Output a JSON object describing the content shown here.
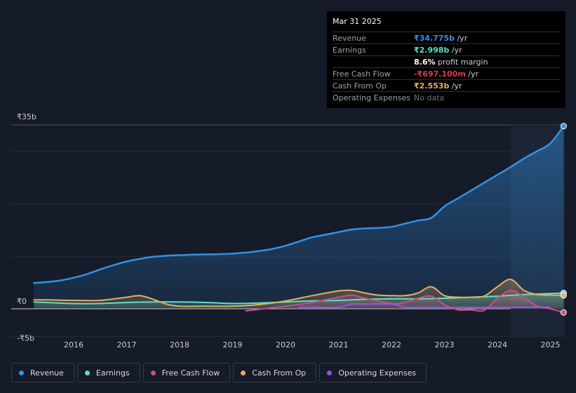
{
  "chart_data": {
    "type": "area",
    "currency_unit": "₹",
    "ylim": [
      -5,
      35
    ],
    "y_tick_labels": [
      {
        "value": 35,
        "label": "₹35b"
      },
      {
        "value": 0,
        "label": "₹0"
      },
      {
        "value": -5,
        "label": "-₹5b"
      }
    ],
    "x_tick_labels": [
      "2016",
      "2017",
      "2018",
      "2019",
      "2020",
      "2021",
      "2022",
      "2023",
      "2024",
      "2025"
    ],
    "x_tick_values": [
      2016,
      2017,
      2018,
      2019,
      2020,
      2021,
      2022,
      2023,
      2024,
      2025
    ],
    "forecast_shade_start": 2024.25,
    "series": [
      {
        "name": "Revenue",
        "color": "#3391e6",
        "fill": true,
        "x": [
          2015.25,
          2015.5,
          2015.75,
          2016.0,
          2016.25,
          2016.5,
          2016.75,
          2017.0,
          2017.25,
          2017.5,
          2017.75,
          2018.0,
          2018.25,
          2018.5,
          2018.75,
          2019.0,
          2019.25,
          2019.5,
          2019.75,
          2020.0,
          2020.25,
          2020.5,
          2020.75,
          2021.0,
          2021.25,
          2021.5,
          2021.75,
          2022.0,
          2022.25,
          2022.5,
          2022.75,
          2023.0,
          2023.25,
          2023.5,
          2023.75,
          2024.0,
          2024.25,
          2024.5,
          2024.75,
          2025.0,
          2025.25
        ],
        "values": [
          4.9,
          5.1,
          5.4,
          5.9,
          6.6,
          7.5,
          8.3,
          9.0,
          9.5,
          9.9,
          10.1,
          10.2,
          10.3,
          10.35,
          10.4,
          10.5,
          10.7,
          11.0,
          11.4,
          12.0,
          12.8,
          13.6,
          14.1,
          14.6,
          15.1,
          15.3,
          15.4,
          15.6,
          16.2,
          16.8,
          17.3,
          19.5,
          21.0,
          22.5,
          24.0,
          25.5,
          27.0,
          28.6,
          30.0,
          31.5,
          34.775
        ]
      },
      {
        "name": "Earnings",
        "color": "#5ce0c6",
        "fill": true,
        "x": [
          2015.25,
          2015.5,
          2016.0,
          2016.5,
          2017.0,
          2017.5,
          2018.0,
          2018.5,
          2019.0,
          2019.5,
          2020.0,
          2020.5,
          2021.0,
          2021.5,
          2022.0,
          2022.5,
          2023.0,
          2023.5,
          2024.0,
          2024.5,
          2025.0,
          2025.25
        ],
        "values": [
          1.3,
          1.2,
          1.0,
          1.0,
          1.2,
          1.3,
          1.3,
          1.2,
          1.0,
          1.1,
          1.3,
          1.5,
          1.6,
          1.8,
          1.9,
          1.9,
          2.0,
          2.2,
          2.4,
          2.7,
          2.9,
          2.998
        ]
      },
      {
        "name": "Free Cash Flow",
        "color": "#cc4e88",
        "fill": true,
        "x": [
          2019.25,
          2019.5,
          2020.0,
          2020.5,
          2021.0,
          2021.25,
          2021.5,
          2022.0,
          2022.25,
          2022.5,
          2022.75,
          2023.0,
          2023.25,
          2023.5,
          2023.75,
          2024.0,
          2024.25,
          2024.5,
          2024.75,
          2025.0,
          2025.25
        ],
        "values": [
          -0.4,
          -0.1,
          0.5,
          1.2,
          2.2,
          2.6,
          2.0,
          1.0,
          1.2,
          2.0,
          2.4,
          0.8,
          -0.2,
          -0.2,
          -0.3,
          2.0,
          3.5,
          2.2,
          0.5,
          0.0,
          -0.697
        ]
      },
      {
        "name": "Cash From Op",
        "color": "#e8ad5c",
        "fill": true,
        "x": [
          2015.25,
          2015.5,
          2016.0,
          2016.5,
          2017.0,
          2017.25,
          2017.5,
          2017.75,
          2018.0,
          2018.5,
          2019.0,
          2019.5,
          2020.0,
          2020.5,
          2021.0,
          2021.25,
          2021.5,
          2021.75,
          2022.0,
          2022.25,
          2022.5,
          2022.75,
          2023.0,
          2023.25,
          2023.5,
          2023.75,
          2024.0,
          2024.25,
          2024.5,
          2024.75,
          2025.0,
          2025.25
        ],
        "values": [
          1.7,
          1.7,
          1.6,
          1.6,
          2.2,
          2.5,
          1.8,
          0.9,
          0.5,
          0.5,
          0.5,
          0.8,
          1.5,
          2.5,
          3.4,
          3.5,
          3.0,
          2.6,
          2.5,
          2.5,
          3.0,
          4.2,
          2.5,
          2.2,
          2.2,
          2.4,
          4.2,
          5.6,
          3.5,
          2.7,
          2.6,
          2.553
        ]
      },
      {
        "name": "Operating Expenses",
        "color": "#a24ee2",
        "fill": false,
        "x": [
          2020.25,
          2020.5,
          2021.0,
          2021.25,
          2021.5,
          2022.0,
          2022.25,
          2022.5,
          2023.0,
          2023.5,
          2024.0,
          2024.5,
          2025.0
        ],
        "values": [
          0.3,
          0.3,
          0.3,
          0.9,
          0.9,
          0.9,
          0.3,
          0.3,
          0.3,
          0.3,
          0.3,
          0.3,
          0.3
        ]
      }
    ]
  },
  "tooltip": {
    "date": "Mar 31 2025",
    "rows": [
      {
        "label": "Revenue",
        "value": "₹34.775b",
        "unit": " /yr",
        "color": "#3391e6"
      },
      {
        "label": "Earnings",
        "value": "₹2.998b",
        "unit": " /yr",
        "color": "#5ce0c6"
      },
      {
        "label": "",
        "value": "8.6%",
        "unit": " profit margin",
        "color": "#ffffff"
      },
      {
        "label": "Free Cash Flow",
        "value": "-₹697.100m",
        "unit": " /yr",
        "color": "#e03c4a"
      },
      {
        "label": "Cash From Op",
        "value": "₹2.553b",
        "unit": " /yr",
        "color": "#e8ad5c"
      },
      {
        "label": "Operating Expenses",
        "value": "No data",
        "unit": "",
        "color": "#6b717b"
      }
    ]
  },
  "legend": [
    {
      "label": "Revenue",
      "color": "#3391e6"
    },
    {
      "label": "Earnings",
      "color": "#5ce0c6"
    },
    {
      "label": "Free Cash Flow",
      "color": "#cc4e88"
    },
    {
      "label": "Cash From Op",
      "color": "#e8ad5c"
    },
    {
      "label": "Operating Expenses",
      "color": "#a24ee2"
    }
  ]
}
